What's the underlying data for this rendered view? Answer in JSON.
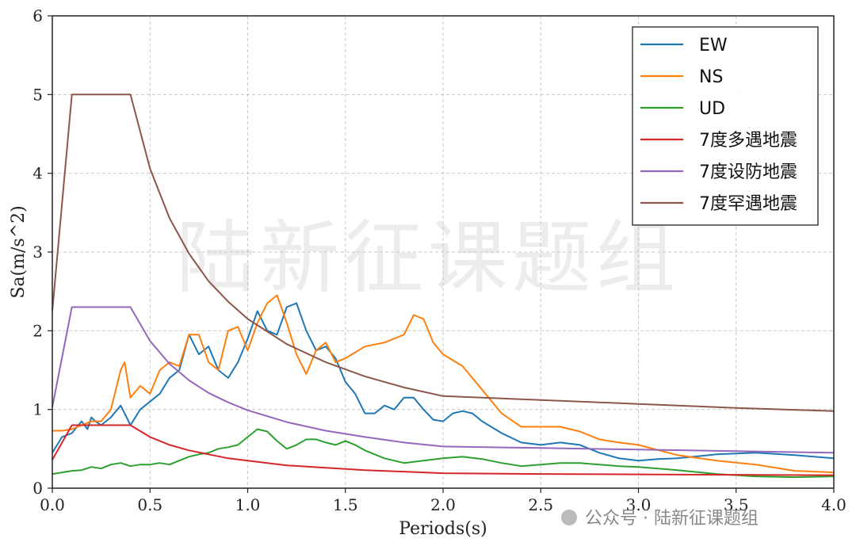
{
  "chart_data": {
    "type": "line",
    "xlabel": "Periods(s)",
    "ylabel": "Sa(m/s^2)",
    "xlim": [
      0,
      4.0
    ],
    "ylim": [
      0,
      6
    ],
    "xticks": [
      "0.0",
      "0.5",
      "1.0",
      "1.5",
      "2.0",
      "2.5",
      "3.0",
      "3.5",
      "4.0"
    ],
    "yticks": [
      "0",
      "1",
      "2",
      "3",
      "4",
      "5",
      "6"
    ],
    "grid": true,
    "legend_position": "top-right",
    "series": [
      {
        "name": "EW",
        "color": "#1f77b4",
        "x": [
          0,
          0.05,
          0.1,
          0.15,
          0.18,
          0.2,
          0.22,
          0.25,
          0.3,
          0.35,
          0.4,
          0.45,
          0.5,
          0.55,
          0.6,
          0.65,
          0.7,
          0.75,
          0.8,
          0.85,
          0.9,
          0.95,
          1.0,
          1.05,
          1.1,
          1.15,
          1.2,
          1.25,
          1.3,
          1.35,
          1.4,
          1.45,
          1.5,
          1.55,
          1.6,
          1.65,
          1.7,
          1.75,
          1.8,
          1.85,
          1.9,
          1.95,
          2.0,
          2.05,
          2.1,
          2.15,
          2.2,
          2.3,
          2.4,
          2.5,
          2.6,
          2.7,
          2.8,
          2.9,
          3.0,
          3.1,
          3.2,
          3.4,
          3.6,
          3.8,
          4.0
        ],
        "y": [
          0.45,
          0.65,
          0.7,
          0.85,
          0.75,
          0.9,
          0.85,
          0.8,
          0.9,
          1.05,
          0.8,
          1.0,
          1.1,
          1.2,
          1.4,
          1.5,
          1.95,
          1.7,
          1.8,
          1.5,
          1.4,
          1.6,
          1.9,
          2.25,
          2.0,
          1.95,
          2.3,
          2.35,
          2.0,
          1.75,
          1.8,
          1.65,
          1.35,
          1.2,
          0.95,
          0.95,
          1.05,
          1.0,
          1.15,
          1.15,
          1.0,
          0.87,
          0.85,
          0.95,
          0.98,
          0.95,
          0.85,
          0.7,
          0.58,
          0.55,
          0.58,
          0.55,
          0.45,
          0.38,
          0.35,
          0.37,
          0.38,
          0.43,
          0.45,
          0.42,
          0.38
        ]
      },
      {
        "name": "NS",
        "color": "#ff7f0e",
        "x": [
          0,
          0.05,
          0.1,
          0.15,
          0.2,
          0.25,
          0.3,
          0.35,
          0.37,
          0.4,
          0.45,
          0.5,
          0.55,
          0.6,
          0.65,
          0.7,
          0.75,
          0.8,
          0.85,
          0.9,
          0.95,
          1.0,
          1.05,
          1.1,
          1.15,
          1.2,
          1.25,
          1.3,
          1.35,
          1.4,
          1.45,
          1.5,
          1.6,
          1.7,
          1.8,
          1.85,
          1.9,
          1.95,
          2.0,
          2.1,
          2.2,
          2.3,
          2.4,
          2.5,
          2.6,
          2.7,
          2.8,
          2.9,
          3.0,
          3.2,
          3.4,
          3.6,
          3.8,
          4.0
        ],
        "y": [
          0.73,
          0.73,
          0.75,
          0.8,
          0.85,
          0.85,
          1.0,
          1.5,
          1.6,
          1.15,
          1.3,
          1.2,
          1.5,
          1.6,
          1.55,
          1.95,
          1.95,
          1.6,
          1.5,
          2.0,
          2.05,
          1.75,
          2.1,
          2.35,
          2.45,
          2.1,
          1.7,
          1.45,
          1.75,
          1.85,
          1.6,
          1.65,
          1.8,
          1.85,
          1.95,
          2.2,
          2.15,
          1.85,
          1.7,
          1.55,
          1.25,
          0.95,
          0.78,
          0.78,
          0.78,
          0.72,
          0.62,
          0.58,
          0.55,
          0.42,
          0.35,
          0.3,
          0.22,
          0.2
        ]
      },
      {
        "name": "UD",
        "color": "#2ca02c",
        "x": [
          0,
          0.05,
          0.1,
          0.15,
          0.2,
          0.25,
          0.3,
          0.35,
          0.4,
          0.45,
          0.5,
          0.55,
          0.6,
          0.65,
          0.7,
          0.75,
          0.8,
          0.85,
          0.9,
          0.95,
          1.0,
          1.05,
          1.1,
          1.15,
          1.2,
          1.25,
          1.3,
          1.35,
          1.4,
          1.45,
          1.5,
          1.55,
          1.6,
          1.7,
          1.8,
          1.9,
          2.0,
          2.1,
          2.2,
          2.3,
          2.4,
          2.5,
          2.6,
          2.7,
          2.8,
          2.9,
          3.0,
          3.2,
          3.4,
          3.6,
          3.8,
          4.0
        ],
        "y": [
          0.18,
          0.2,
          0.22,
          0.23,
          0.27,
          0.25,
          0.3,
          0.32,
          0.28,
          0.3,
          0.3,
          0.32,
          0.3,
          0.35,
          0.4,
          0.43,
          0.45,
          0.5,
          0.52,
          0.55,
          0.65,
          0.75,
          0.72,
          0.6,
          0.5,
          0.55,
          0.62,
          0.62,
          0.58,
          0.55,
          0.6,
          0.55,
          0.48,
          0.38,
          0.32,
          0.35,
          0.38,
          0.4,
          0.37,
          0.32,
          0.28,
          0.3,
          0.32,
          0.32,
          0.3,
          0.28,
          0.27,
          0.23,
          0.18,
          0.15,
          0.14,
          0.15
        ]
      },
      {
        "name": "7度多遇地震",
        "color": "#d62728",
        "x": [
          0,
          0.1,
          0.4,
          0.5,
          0.6,
          0.7,
          0.8,
          0.9,
          1.0,
          1.2,
          1.4,
          1.6,
          1.8,
          2.0,
          2.5,
          3.0,
          3.5,
          4.0
        ],
        "y": [
          0.36,
          0.8,
          0.8,
          0.65,
          0.55,
          0.48,
          0.43,
          0.38,
          0.35,
          0.29,
          0.26,
          0.23,
          0.21,
          0.19,
          0.18,
          0.175,
          0.17,
          0.165
        ]
      },
      {
        "name": "7度设防地震",
        "color": "#9467bd",
        "x": [
          0,
          0.1,
          0.4,
          0.5,
          0.6,
          0.7,
          0.8,
          0.9,
          1.0,
          1.2,
          1.4,
          1.6,
          1.8,
          2.0,
          2.5,
          3.0,
          3.5,
          4.0
        ],
        "y": [
          1.03,
          2.3,
          2.3,
          1.87,
          1.58,
          1.37,
          1.21,
          1.09,
          0.99,
          0.84,
          0.73,
          0.65,
          0.58,
          0.53,
          0.51,
          0.49,
          0.47,
          0.45
        ]
      },
      {
        "name": "7度罕遇地震",
        "color": "#8c564b",
        "x": [
          0,
          0.1,
          0.4,
          0.5,
          0.6,
          0.7,
          0.8,
          0.9,
          1.0,
          1.2,
          1.4,
          1.6,
          1.8,
          2.0,
          2.5,
          3.0,
          3.5,
          4.0
        ],
        "y": [
          2.25,
          5.0,
          5.0,
          4.06,
          3.43,
          2.98,
          2.63,
          2.37,
          2.15,
          1.83,
          1.6,
          1.42,
          1.28,
          1.17,
          1.12,
          1.07,
          1.02,
          0.98
        ]
      }
    ]
  },
  "watermark": "陆新征课题组",
  "footer": "公众号 · 陆新征课题组"
}
